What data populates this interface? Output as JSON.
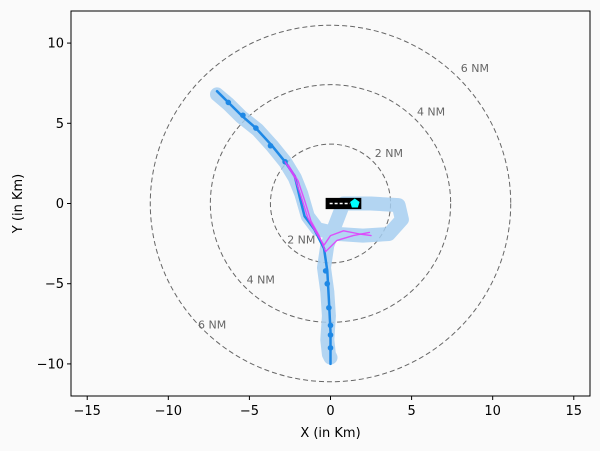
{
  "chart_data": {
    "type": "line",
    "title": "",
    "xlabel": "X (in Km)",
    "ylabel": "Y (in Km)",
    "xlim": [
      -16,
      16
    ],
    "ylim": [
      -12,
      12
    ],
    "xticks": [
      "−15",
      "−10",
      "−5",
      "0",
      "5",
      "10",
      "15"
    ],
    "xtick_values": [
      -15,
      -10,
      -5,
      0,
      5,
      10,
      15
    ],
    "yticks": [
      "−10",
      "−5",
      "0",
      "5",
      "10"
    ],
    "ytick_values": [
      -10,
      -5,
      0,
      5,
      10
    ],
    "grid": false,
    "background": "#fafafa",
    "range_rings": [
      {
        "label": "2 NM",
        "radius_km": 3.704,
        "label_at": [
          3.6,
          2.9
        ],
        "label_at_inner": [
          -1.8,
          -2.5
        ]
      },
      {
        "label": "4 NM",
        "radius_km": 7.408,
        "label_at": [
          6.2,
          5.5
        ],
        "label_at_inner": [
          -4.3,
          -5.0
        ]
      },
      {
        "label": "6 NM",
        "radius_km": 11.112,
        "label_at": [
          8.9,
          8.2
        ],
        "label_at_inner": [
          -7.3,
          -7.8
        ]
      }
    ],
    "colors": {
      "primary_track": "#1e88e5",
      "corridor": "#a6cef0",
      "predicted_track": "#e040fb",
      "ring": "#666666",
      "ownship_box": "#000000",
      "ownship_marker": "#00ffff"
    },
    "series": [
      {
        "role": "corridor",
        "x": [
          -7.0,
          -6.3,
          -5.5,
          -4.5,
          -3.6,
          -2.8,
          -2.2,
          -1.8,
          -1.4,
          -0.8,
          0.5,
          2.0,
          3.6,
          4.4,
          4.2,
          2.5,
          0.8,
          -0.2,
          -0.4,
          -0.2,
          -0.1,
          -0.2,
          -0.1,
          0.0
        ],
        "y": [
          6.8,
          6.2,
          5.4,
          4.6,
          3.6,
          2.6,
          1.6,
          0.6,
          -0.8,
          -1.6,
          -1.9,
          -2.0,
          -1.9,
          -1.0,
          -0.1,
          0.0,
          0.0,
          -2.6,
          -4.0,
          -5.5,
          -7.0,
          -8.5,
          -9.4,
          -9.6
        ]
      },
      {
        "role": "primary_track",
        "x": [
          -7.0,
          -6.3,
          -5.5,
          -4.6,
          -3.6,
          -2.8,
          -2.2,
          -1.9,
          -1.6,
          -1.0,
          -0.4,
          -0.2,
          -0.1,
          0.0,
          0.0
        ],
        "y": [
          7.0,
          6.3,
          5.5,
          4.7,
          3.6,
          2.6,
          1.7,
          0.4,
          -0.8,
          -1.6,
          -2.8,
          -4.2,
          -6.0,
          -8.0,
          -10.0
        ],
        "markers": [
          [
            -6.3,
            6.3
          ],
          [
            -5.4,
            5.5
          ],
          [
            -4.6,
            4.7
          ],
          [
            -3.7,
            3.6
          ],
          [
            -2.8,
            2.6
          ],
          [
            -0.3,
            -4.2
          ],
          [
            -0.2,
            -5.0
          ],
          [
            -0.1,
            -6.5
          ],
          [
            0.0,
            -7.6
          ],
          [
            0.0,
            -8.2
          ],
          [
            0.0,
            -9.0
          ]
        ]
      },
      {
        "role": "predicted_track",
        "x": [
          -2.8,
          -2.2,
          -1.8,
          -1.4,
          -0.9,
          -0.4,
          0.0,
          0.8,
          1.8,
          2.5
        ],
        "y": [
          2.6,
          1.6,
          0.4,
          -0.9,
          -1.8,
          -2.6,
          -2.0,
          -1.7,
          -1.9,
          -2.0
        ]
      },
      {
        "role": "predicted_track_alt",
        "x": [
          -2.6,
          -2.0,
          -1.6,
          -1.2,
          -0.7,
          -0.3,
          0.4,
          1.4,
          2.4
        ],
        "y": [
          2.4,
          1.4,
          0.2,
          -1.1,
          -2.0,
          -3.0,
          -2.3,
          -2.0,
          -1.8
        ]
      }
    ],
    "ownship": {
      "x_range": [
        -0.3,
        1.9
      ],
      "y_range": [
        -0.35,
        0.35
      ],
      "marker_x": 1.5,
      "marker_y": 0.0
    }
  }
}
